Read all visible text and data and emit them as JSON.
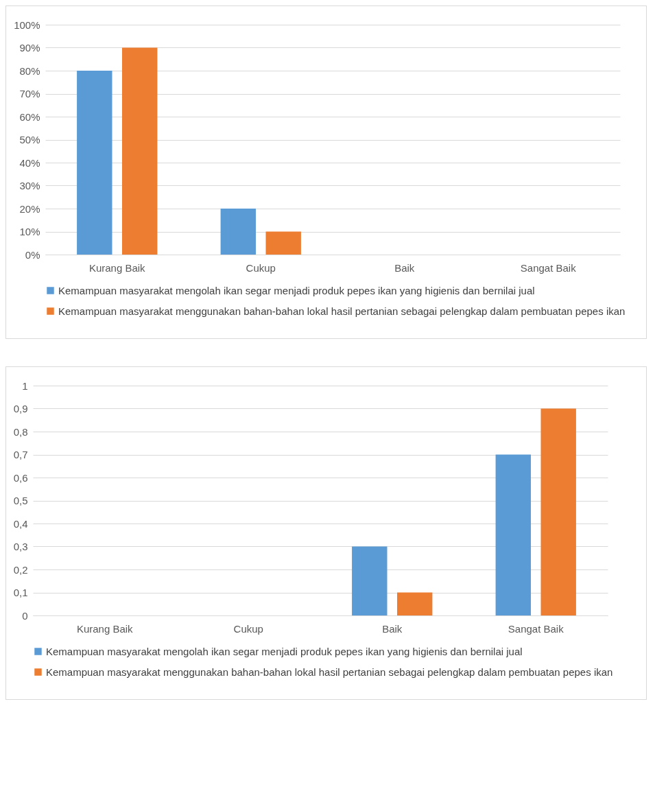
{
  "chart_data": [
    {
      "type": "bar",
      "categories": [
        "Kurang Baik",
        "Cukup",
        "Baik",
        "Sangat Baik"
      ],
      "series": [
        {
          "name": "Kemampuan masyarakat mengolah ikan segar menjadi produk pepes ikan yang higienis dan bernilai jual",
          "color": "#5b9bd5",
          "values": [
            80,
            20,
            0,
            0
          ]
        },
        {
          "name": "Kemampuan masyarakat menggunakan bahan-bahan lokal hasil pertanian sebagai pelengkap dalam pembuatan pepes ikan",
          "color": "#ed7d31",
          "values": [
            90,
            10,
            0,
            0
          ]
        }
      ],
      "ylim": [
        0,
        100
      ],
      "yticks": [
        {
          "value": 0,
          "label": "0%"
        },
        {
          "value": 10,
          "label": "10%"
        },
        {
          "value": 20,
          "label": "20%"
        },
        {
          "value": 30,
          "label": "30%"
        },
        {
          "value": 40,
          "label": "40%"
        },
        {
          "value": 50,
          "label": "50%"
        },
        {
          "value": 60,
          "label": "60%"
        },
        {
          "value": 70,
          "label": "70%"
        },
        {
          "value": 80,
          "label": "80%"
        },
        {
          "value": 90,
          "label": "90%"
        },
        {
          "value": 100,
          "label": "100%"
        }
      ],
      "grid": "y",
      "legend": "bottom"
    },
    {
      "type": "bar",
      "categories": [
        "Kurang Baik",
        "Cukup",
        "Baik",
        "Sangat Baik"
      ],
      "series": [
        {
          "name": "Kemampuan masyarakat mengolah ikan segar menjadi produk pepes ikan yang higienis dan bernilai jual",
          "color": "#5b9bd5",
          "values": [
            0,
            0,
            0.3,
            0.7
          ]
        },
        {
          "name": "Kemampuan masyarakat menggunakan bahan-bahan lokal hasil pertanian sebagai pelengkap dalam pembuatan pepes ikan",
          "color": "#ed7d31",
          "values": [
            0,
            0,
            0.1,
            0.9
          ]
        }
      ],
      "ylim": [
        0,
        1
      ],
      "yticks": [
        0,
        {
          "value": 0.1,
          "label": "0,1"
        },
        {
          "value": 0.2,
          "label": "0,2"
        },
        {
          "value": 0.3,
          "label": "0,3"
        },
        {
          "value": 0.4,
          "label": "0,4"
        },
        {
          "value": 0.5,
          "label": "0,5"
        },
        {
          "value": 0.6,
          "label": "0,6"
        },
        {
          "value": 0.7,
          "label": "0,7"
        },
        {
          "value": 0.8,
          "label": "0,8"
        },
        {
          "value": 0.9,
          "label": "0,9"
        },
        1
      ],
      "grid": "y",
      "legend": "bottom"
    }
  ]
}
